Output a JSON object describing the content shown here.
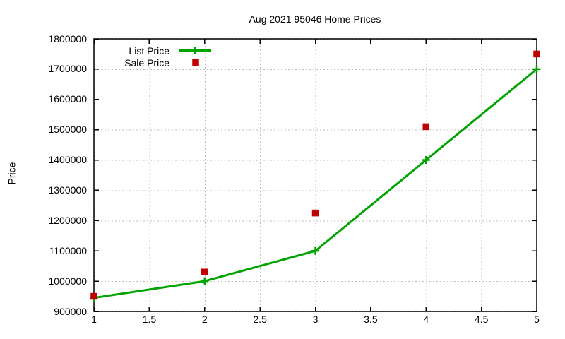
{
  "window": {
    "background": "#ffffff",
    "text_color": "#000000"
  },
  "chart_data": {
    "type": "line",
    "title": "Aug 2021 95046 Home Prices",
    "xlabel": "",
    "ylabel": "Price",
    "x": [
      1,
      2,
      3,
      4,
      5
    ],
    "series": [
      {
        "name": "List Price",
        "style": "line-with-plus-markers",
        "color": "#00a400",
        "values": [
          945000,
          1000000,
          1100000,
          1400000,
          1700000
        ]
      },
      {
        "name": "Sale Price",
        "style": "square-markers",
        "color": "#c00000",
        "values": [
          950000,
          1030000,
          1225000,
          1510000,
          1750000
        ]
      }
    ],
    "xlim": [
      1,
      5
    ],
    "ylim": [
      900000,
      1800000
    ],
    "xticks": [
      "1",
      "1.5",
      "2",
      "2.5",
      "3",
      "3.5",
      "4",
      "4.5",
      "5"
    ],
    "yticks": [
      900000,
      1000000,
      1100000,
      1200000,
      1300000,
      1400000,
      1500000,
      1600000,
      1700000,
      1800000
    ],
    "grid": true,
    "grid_color": "#bdbdbd",
    "frame_color": "#000000",
    "legend_position": "top-left-inside"
  }
}
